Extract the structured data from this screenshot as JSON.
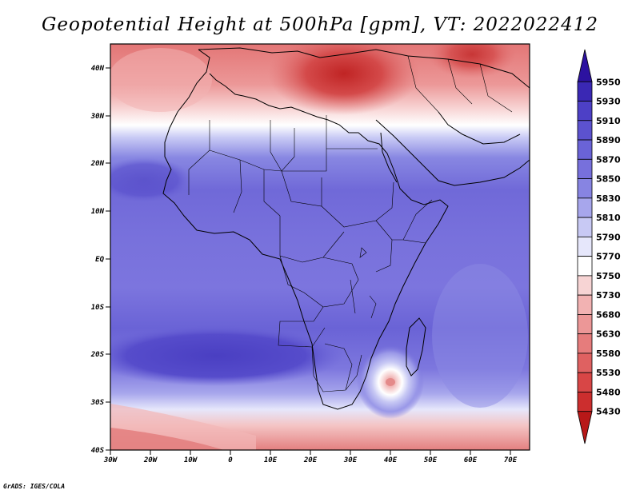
{
  "title": "Geopotential Height at 500hPa [gpm], VT: 2022022412",
  "footer": "GrADS: IGES/COLA",
  "axes": {
    "lat_labels": [
      "40N",
      "30N",
      "20N",
      "10N",
      "EQ",
      "10S",
      "20S",
      "30S",
      "40S"
    ],
    "lon_labels": [
      "30W",
      "20W",
      "10W",
      "0",
      "10E",
      "20E",
      "30E",
      "40E",
      "50E",
      "60E",
      "70E"
    ]
  },
  "colorbar": {
    "levels": [
      "5950",
      "5930",
      "5910",
      "5890",
      "5870",
      "5850",
      "5830",
      "5810",
      "5790",
      "5770",
      "5750",
      "5730",
      "5680",
      "5630",
      "5580",
      "5530",
      "5480",
      "5430"
    ],
    "colors": [
      "#2c12a0",
      "#3a28b4",
      "#4d40c6",
      "#5c52cf",
      "#6a63d7",
      "#7770dc",
      "#8784e2",
      "#a7a6ec",
      "#c8c9f4",
      "#e6e7fb",
      "#ffffff",
      "#f7d4d4",
      "#f2b2b2",
      "#ec9797",
      "#e67c7c",
      "#df6161",
      "#d84646",
      "#cc2e2e",
      "#b81818"
    ]
  },
  "colors": {
    "north_red": "#e06a6a",
    "mid_blue": "#7670dc",
    "deep_blue": "#4a3fc2"
  }
}
